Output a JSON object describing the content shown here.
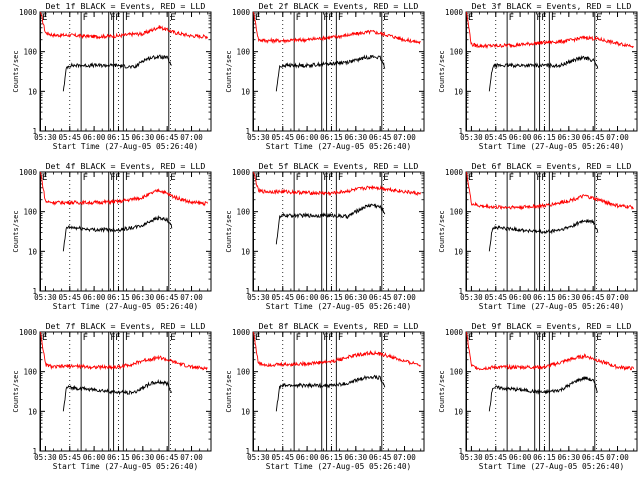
{
  "panel_titles": [
    "Det 1f BLACK = Events, RED = LLD",
    "Det 2f BLACK = Events, RED = LLD",
    "Det 3f BLACK = Events, RED = LLD",
    "Det 4f BLACK = Events, RED = LLD",
    "Det 5f BLACK = Events, RED = LLD",
    "Det 6f BLACK = Events, RED = LLD",
    "Det 7f BLACK = Events, RED = LLD",
    "Det 8f BLACK = Events, RED = LLD",
    "Det 9f BLACK = Events, RED = LLD"
  ],
  "xlabel": "Start Time (27-Aug-05 05:26:40)",
  "ylabel": "Counts/sec",
  "x_tick_labels": [
    "05:30",
    "05:45",
    "06:00",
    "06:15",
    "06:30",
    "06:45",
    "07:00"
  ],
  "y_tick_labels": [
    "1",
    "10",
    "100",
    "1000"
  ],
  "colors": {
    "events": "#000000",
    "lld": "#ff0000",
    "background": "#ffffff"
  },
  "chart_data": {
    "type": "line",
    "scale_y": "log",
    "xlim": [
      "05:26:40",
      "07:12"
    ],
    "ylim": [
      1,
      1000
    ],
    "x_ticks": [
      "05:30",
      "05:45",
      "06:00",
      "06:15",
      "06:30",
      "06:45",
      "07:00"
    ],
    "markers": [
      {
        "label": "E",
        "time": "05:27"
      },
      {
        "label": "F",
        "time": "05:52"
      },
      {
        "label": "F",
        "time": "06:09"
      },
      {
        "label": "F",
        "time": "06:12"
      },
      {
        "label": "F",
        "time": "06:18"
      },
      {
        "label": "E",
        "time": "06:46"
      }
    ],
    "dotted_lines": [
      "05:45",
      "06:15",
      "06:47"
    ],
    "grid": false,
    "panels": [
      {
        "detector": "1f",
        "series": [
          {
            "name": "LLD",
            "color": "#ff0000",
            "x": [
              "05:27",
              "05:30",
              "05:35",
              "05:45",
              "06:00",
              "06:15",
              "06:25",
              "06:30",
              "06:40",
              "06:50",
              "07:00",
              "07:10"
            ],
            "y": [
              1000,
              300,
              260,
              260,
              240,
              250,
              280,
              280,
              420,
              300,
              250,
              240
            ]
          },
          {
            "name": "Events",
            "color": "#000000",
            "x": [
              "05:41",
              "05:43",
              "05:45",
              "06:00",
              "06:15",
              "06:25",
              "06:30",
              "06:35",
              "06:40",
              "06:45",
              "06:48"
            ],
            "y": [
              10,
              40,
              45,
              45,
              45,
              40,
              60,
              70,
              75,
              70,
              40
            ]
          }
        ]
      },
      {
        "detector": "2f",
        "series": [
          {
            "name": "LLD",
            "color": "#ff0000",
            "x": [
              "05:27",
              "05:30",
              "05:35",
              "05:45",
              "06:00",
              "06:15",
              "06:25",
              "06:30",
              "06:40",
              "06:50",
              "07:00",
              "07:10"
            ],
            "y": [
              1000,
              200,
              190,
              190,
              200,
              230,
              260,
              280,
              320,
              260,
              200,
              170
            ]
          },
          {
            "name": "Events",
            "color": "#000000",
            "x": [
              "05:41",
              "05:43",
              "05:45",
              "06:00",
              "06:15",
              "06:25",
              "06:30",
              "06:35",
              "06:40",
              "06:45",
              "06:48"
            ],
            "y": [
              10,
              40,
              45,
              45,
              50,
              55,
              60,
              70,
              75,
              70,
              40
            ]
          }
        ]
      },
      {
        "detector": "3f",
        "series": [
          {
            "name": "LLD",
            "color": "#ff0000",
            "x": [
              "05:27",
              "05:30",
              "05:35",
              "05:45",
              "06:00",
              "06:15",
              "06:25",
              "06:30",
              "06:40",
              "06:50",
              "07:00",
              "07:10"
            ],
            "y": [
              1000,
              150,
              140,
              140,
              150,
              170,
              180,
              190,
              230,
              200,
              160,
              140
            ]
          },
          {
            "name": "Events",
            "color": "#000000",
            "x": [
              "05:41",
              "05:43",
              "05:45",
              "06:00",
              "06:15",
              "06:25",
              "06:30",
              "06:35",
              "06:40",
              "06:45",
              "06:48"
            ],
            "y": [
              10,
              40,
              45,
              45,
              45,
              45,
              55,
              65,
              70,
              60,
              40
            ]
          }
        ]
      },
      {
        "detector": "4f",
        "series": [
          {
            "name": "LLD",
            "color": "#ff0000",
            "x": [
              "05:27",
              "05:30",
              "05:35",
              "05:45",
              "06:00",
              "06:15",
              "06:25",
              "06:30",
              "06:40",
              "06:50",
              "07:00",
              "07:10"
            ],
            "y": [
              1000,
              180,
              170,
              170,
              170,
              180,
              210,
              230,
              350,
              230,
              170,
              160
            ]
          },
          {
            "name": "Events",
            "color": "#000000",
            "x": [
              "05:41",
              "05:43",
              "05:45",
              "06:00",
              "06:15",
              "06:25",
              "06:30",
              "06:35",
              "06:40",
              "06:45",
              "06:48"
            ],
            "y": [
              10,
              40,
              40,
              35,
              35,
              40,
              45,
              60,
              70,
              60,
              40
            ]
          }
        ]
      },
      {
        "detector": "5f",
        "series": [
          {
            "name": "LLD",
            "color": "#ff0000",
            "x": [
              "05:27",
              "05:30",
              "05:35",
              "05:45",
              "06:00",
              "06:15",
              "06:25",
              "06:30",
              "06:40",
              "06:50",
              "07:00",
              "07:10"
            ],
            "y": [
              1000,
              330,
              320,
              320,
              300,
              290,
              330,
              360,
              420,
              370,
              320,
              280
            ]
          },
          {
            "name": "Events",
            "color": "#000000",
            "x": [
              "05:41",
              "05:43",
              "05:45",
              "06:00",
              "06:15",
              "06:25",
              "06:30",
              "06:35",
              "06:40",
              "06:45",
              "06:48"
            ],
            "y": [
              15,
              70,
              80,
              80,
              80,
              75,
              100,
              130,
              150,
              130,
              90
            ]
          }
        ]
      },
      {
        "detector": "6f",
        "series": [
          {
            "name": "LLD",
            "color": "#ff0000",
            "x": [
              "05:27",
              "05:30",
              "05:35",
              "05:45",
              "06:00",
              "06:15",
              "06:25",
              "06:30",
              "06:40",
              "06:50",
              "07:00",
              "07:10"
            ],
            "y": [
              1000,
              160,
              140,
              130,
              130,
              140,
              170,
              190,
              250,
              190,
              140,
              130
            ]
          },
          {
            "name": "Events",
            "color": "#000000",
            "x": [
              "05:41",
              "05:43",
              "05:45",
              "06:00",
              "06:15",
              "06:25",
              "06:30",
              "06:35",
              "06:40",
              "06:45",
              "06:48"
            ],
            "y": [
              10,
              40,
              40,
              35,
              30,
              35,
              40,
              50,
              60,
              55,
              30
            ]
          }
        ]
      },
      {
        "detector": "7f",
        "series": [
          {
            "name": "LLD",
            "color": "#ff0000",
            "x": [
              "05:27",
              "05:30",
              "05:35",
              "05:45",
              "06:00",
              "06:15",
              "06:25",
              "06:30",
              "06:40",
              "06:50",
              "07:00",
              "07:10"
            ],
            "y": [
              1000,
              150,
              130,
              140,
              130,
              130,
              160,
              190,
              230,
              170,
              130,
              120
            ]
          },
          {
            "name": "Events",
            "color": "#000000",
            "x": [
              "05:41",
              "05:43",
              "05:45",
              "06:00",
              "06:15",
              "06:25",
              "06:30",
              "06:35",
              "06:40",
              "06:45",
              "06:48"
            ],
            "y": [
              10,
              40,
              40,
              35,
              30,
              30,
              40,
              50,
              55,
              50,
              30
            ]
          }
        ]
      },
      {
        "detector": "8f",
        "series": [
          {
            "name": "LLD",
            "color": "#ff0000",
            "x": [
              "05:27",
              "05:30",
              "05:35",
              "05:45",
              "06:00",
              "06:15",
              "06:25",
              "06:30",
              "06:40",
              "06:50",
              "07:00",
              "07:10"
            ],
            "y": [
              1000,
              160,
              150,
              150,
              160,
              180,
              230,
              260,
              300,
              250,
              180,
              150
            ]
          },
          {
            "name": "Events",
            "color": "#000000",
            "x": [
              "05:41",
              "05:43",
              "05:45",
              "06:00",
              "06:15",
              "06:25",
              "06:30",
              "06:35",
              "06:40",
              "06:45",
              "06:48"
            ],
            "y": [
              10,
              40,
              45,
              45,
              45,
              50,
              60,
              70,
              75,
              70,
              40
            ]
          }
        ]
      },
      {
        "detector": "9f",
        "series": [
          {
            "name": "LLD",
            "color": "#ff0000",
            "x": [
              "05:27",
              "05:30",
              "05:35",
              "05:45",
              "06:00",
              "06:15",
              "06:25",
              "06:30",
              "06:40",
              "06:50",
              "07:00",
              "07:10"
            ],
            "y": [
              1000,
              140,
              120,
              130,
              130,
              130,
              170,
              200,
              250,
              180,
              130,
              120
            ]
          },
          {
            "name": "Events",
            "color": "#000000",
            "x": [
              "05:41",
              "05:43",
              "05:45",
              "06:00",
              "06:15",
              "06:25",
              "06:30",
              "06:35",
              "06:40",
              "06:45",
              "06:48"
            ],
            "y": [
              10,
              40,
              40,
              35,
              30,
              35,
              45,
              60,
              70,
              60,
              30
            ]
          }
        ]
      }
    ]
  }
}
